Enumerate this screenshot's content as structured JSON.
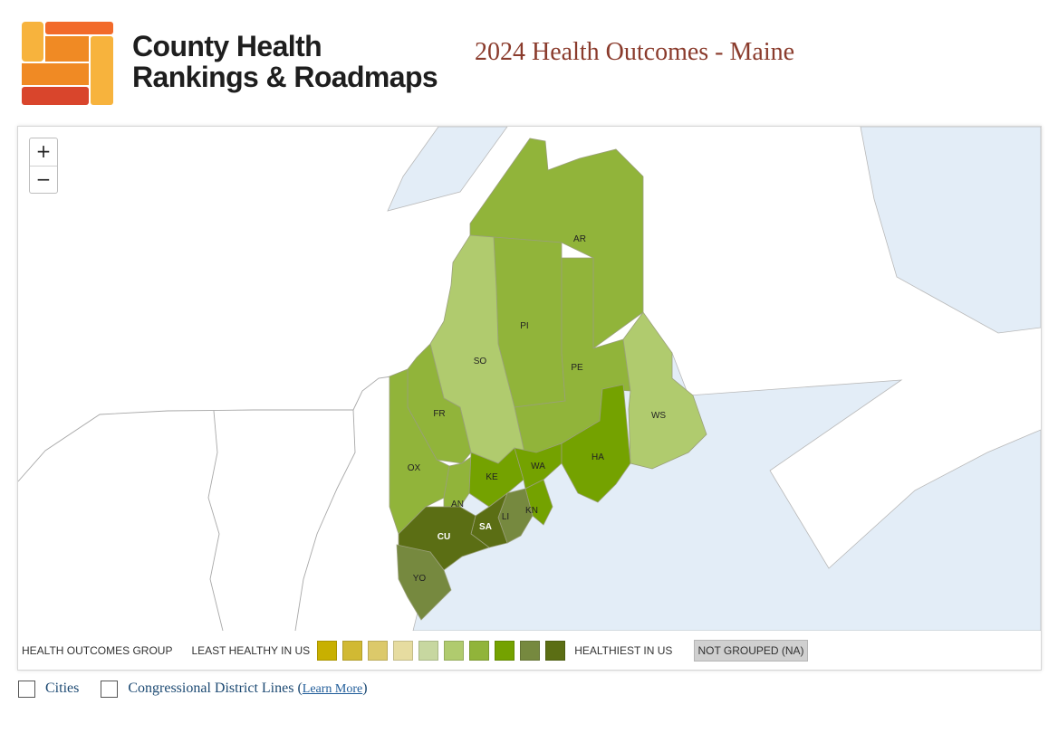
{
  "header": {
    "logo_line1": "County Health",
    "logo_line2": "Rankings & Roadmaps",
    "report_title": "2024 Health Outcomes - Maine",
    "logo_colors": [
      "#f7b33d",
      "#f08a24",
      "#d9452c",
      "#f26a2a"
    ]
  },
  "map": {
    "zoom_in": "+",
    "zoom_out": "−",
    "water_color": "#e3edf7",
    "counties": [
      {
        "code": "AR",
        "group": 7
      },
      {
        "code": "PI",
        "group": 7
      },
      {
        "code": "PE",
        "group": 7
      },
      {
        "code": "SO",
        "group": 6
      },
      {
        "code": "WS",
        "group": 6
      },
      {
        "code": "FR",
        "group": 7
      },
      {
        "code": "OX",
        "group": 7
      },
      {
        "code": "AN",
        "group": 7
      },
      {
        "code": "KE",
        "group": 8
      },
      {
        "code": "WA",
        "group": 8
      },
      {
        "code": "HA",
        "group": 8
      },
      {
        "code": "KN",
        "group": 8
      },
      {
        "code": "LI",
        "group": 9
      },
      {
        "code": "SA",
        "group": 10
      },
      {
        "code": "CU",
        "group": 10
      },
      {
        "code": "YO",
        "group": 9
      }
    ]
  },
  "legend": {
    "title": "HEALTH OUTCOMES GROUP",
    "least": "LEAST HEALTHY IN US",
    "healthiest": "HEALTHIEST IN US",
    "not_grouped": "NOT GROUPED (NA)",
    "colors": [
      "#c8b000",
      "#d1b933",
      "#dcc96a",
      "#e6dca0",
      "#c7d7a0",
      "#b0cb6e",
      "#91b43a",
      "#74a200",
      "#76893f",
      "#5b6e14"
    ]
  },
  "options": {
    "cities": "Cities",
    "cd_lines": "Congressional District Lines",
    "learn_more": "Learn More"
  }
}
